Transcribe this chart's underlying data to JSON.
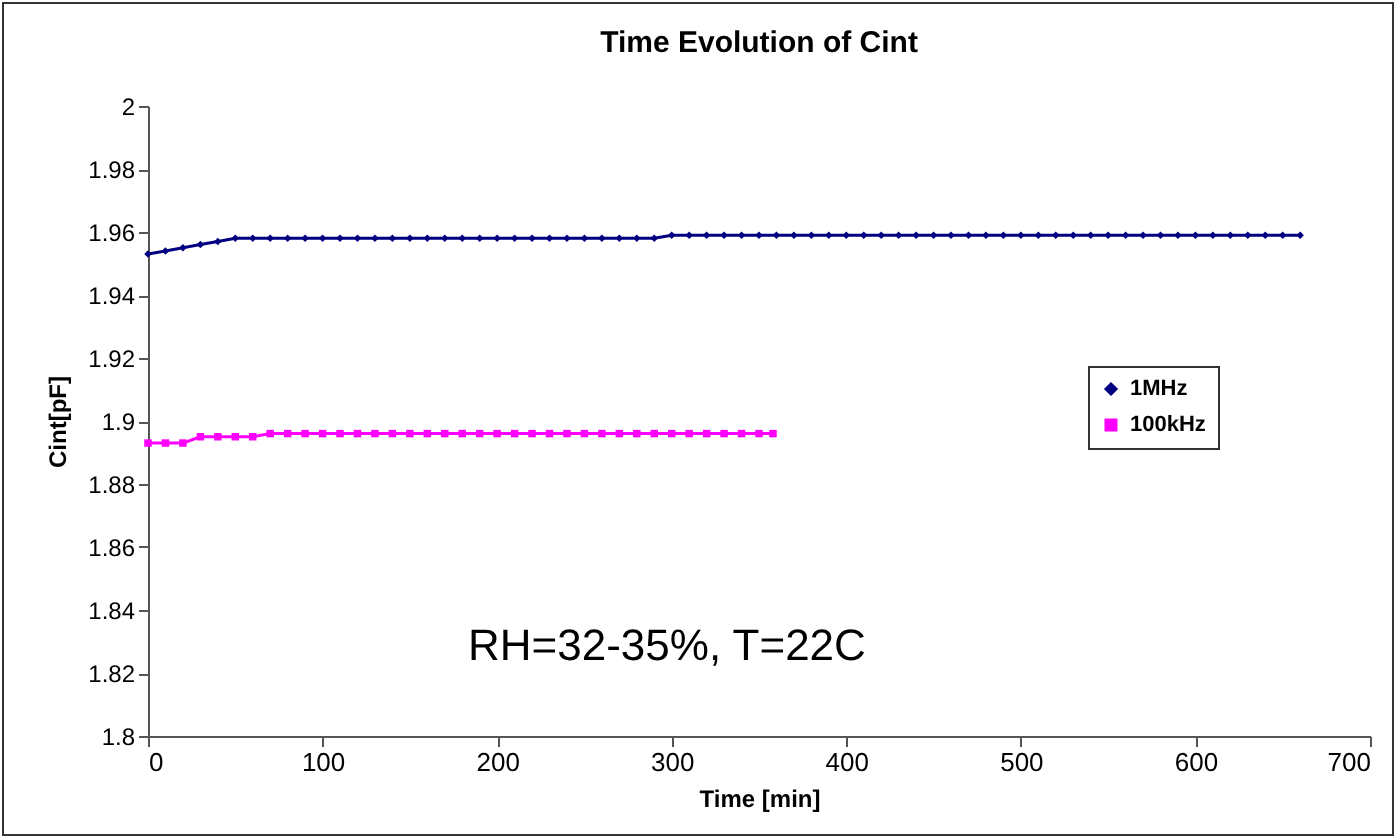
{
  "chart_data": {
    "type": "line",
    "title": "Time Evolution of Cint",
    "xlabel": "Time [min]",
    "ylabel": "Cint[pF]",
    "annotations": [
      "RH=32-35%, T=22C"
    ],
    "xlim": [
      0,
      700
    ],
    "xticks": [
      0,
      100,
      200,
      300,
      400,
      500,
      600,
      700
    ],
    "ylim": [
      1.8,
      2
    ],
    "yticks": [
      1.8,
      1.82,
      1.84,
      1.86,
      1.88,
      1.9,
      1.92,
      1.94,
      1.96,
      1.98,
      2
    ],
    "grid": false,
    "legend": "right",
    "series": [
      {
        "name": "1MHz",
        "color": "#000080",
        "marker": "diamond",
        "x": [
          0,
          10,
          20,
          30,
          40,
          50,
          60,
          70,
          80,
          90,
          100,
          110,
          120,
          130,
          140,
          150,
          160,
          170,
          180,
          190,
          200,
          210,
          220,
          230,
          240,
          250,
          260,
          270,
          280,
          290,
          300,
          310,
          320,
          330,
          340,
          350,
          360,
          370,
          380,
          390,
          400,
          410,
          420,
          430,
          440,
          450,
          460,
          470,
          480,
          490,
          500,
          510,
          520,
          530,
          540,
          550,
          560,
          570,
          580,
          590,
          600,
          610,
          620,
          630,
          640,
          650,
          660
        ],
        "values": [
          1.953,
          1.954,
          1.955,
          1.956,
          1.957,
          1.958,
          1.958,
          1.958,
          1.958,
          1.958,
          1.958,
          1.958,
          1.958,
          1.958,
          1.958,
          1.958,
          1.958,
          1.958,
          1.958,
          1.958,
          1.958,
          1.958,
          1.958,
          1.958,
          1.958,
          1.958,
          1.958,
          1.958,
          1.958,
          1.958,
          1.959,
          1.959,
          1.959,
          1.959,
          1.959,
          1.959,
          1.959,
          1.959,
          1.959,
          1.959,
          1.959,
          1.959,
          1.959,
          1.959,
          1.959,
          1.959,
          1.959,
          1.959,
          1.959,
          1.959,
          1.959,
          1.959,
          1.959,
          1.959,
          1.959,
          1.959,
          1.959,
          1.959,
          1.959,
          1.959,
          1.959,
          1.959,
          1.959,
          1.959,
          1.959,
          1.959,
          1.959
        ]
      },
      {
        "name": "100kHz",
        "color": "#ff00ff",
        "marker": "square",
        "x": [
          0,
          10,
          20,
          30,
          40,
          50,
          60,
          70,
          80,
          90,
          100,
          110,
          120,
          130,
          140,
          150,
          160,
          170,
          180,
          190,
          200,
          210,
          220,
          230,
          240,
          250,
          260,
          270,
          280,
          290,
          300,
          310,
          320,
          330,
          340,
          350,
          358
        ],
        "values": [
          1.893,
          1.893,
          1.893,
          1.895,
          1.895,
          1.895,
          1.895,
          1.896,
          1.896,
          1.896,
          1.896,
          1.896,
          1.896,
          1.896,
          1.896,
          1.896,
          1.896,
          1.896,
          1.896,
          1.896,
          1.896,
          1.896,
          1.896,
          1.896,
          1.896,
          1.896,
          1.896,
          1.896,
          1.896,
          1.896,
          1.896,
          1.896,
          1.896,
          1.896,
          1.896,
          1.896,
          1.896
        ]
      }
    ]
  }
}
